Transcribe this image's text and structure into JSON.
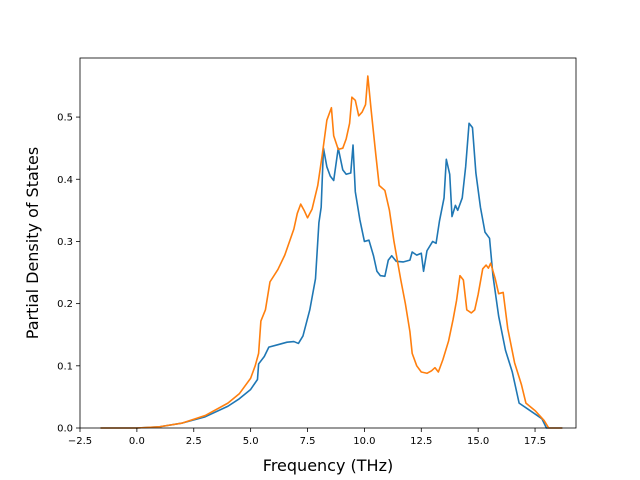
{
  "chart_data": {
    "type": "line",
    "title": "",
    "xlabel": "Frequency (THz)",
    "ylabel": "Partial Density of States",
    "xlim": [
      -2.5,
      19.3
    ],
    "ylim": [
      0.0,
      0.595
    ],
    "xticks": [
      -2.5,
      0.0,
      2.5,
      5.0,
      7.5,
      10.0,
      12.5,
      15.0,
      17.5
    ],
    "xtick_labels": [
      "−2.5",
      "0.0",
      "2.5",
      "5.0",
      "7.5",
      "10.0",
      "12.5",
      "15.0",
      "17.5"
    ],
    "yticks": [
      0.0,
      0.1,
      0.2,
      0.3,
      0.4,
      0.5
    ],
    "ytick_labels": [
      "0.0",
      "0.1",
      "0.2",
      "0.3",
      "0.4",
      "0.5"
    ],
    "grid": false,
    "series": [
      {
        "color": "#1f77b4",
        "points": [
          [
            -1.6,
            0.0
          ],
          [
            0.0,
            0.0
          ],
          [
            1.0,
            0.002
          ],
          [
            2.0,
            0.008
          ],
          [
            3.0,
            0.018
          ],
          [
            4.0,
            0.035
          ],
          [
            4.5,
            0.047
          ],
          [
            5.0,
            0.062
          ],
          [
            5.3,
            0.078
          ],
          [
            5.35,
            0.103
          ],
          [
            5.6,
            0.115
          ],
          [
            5.8,
            0.13
          ],
          [
            6.2,
            0.134
          ],
          [
            6.6,
            0.138
          ],
          [
            6.9,
            0.139
          ],
          [
            7.1,
            0.136
          ],
          [
            7.3,
            0.148
          ],
          [
            7.6,
            0.19
          ],
          [
            7.85,
            0.24
          ],
          [
            8.0,
            0.33
          ],
          [
            8.1,
            0.355
          ],
          [
            8.2,
            0.45
          ],
          [
            8.35,
            0.42
          ],
          [
            8.5,
            0.405
          ],
          [
            8.65,
            0.398
          ],
          [
            8.85,
            0.45
          ],
          [
            9.05,
            0.415
          ],
          [
            9.2,
            0.408
          ],
          [
            9.4,
            0.41
          ],
          [
            9.5,
            0.455
          ],
          [
            9.6,
            0.38
          ],
          [
            9.8,
            0.335
          ],
          [
            10.0,
            0.3
          ],
          [
            10.2,
            0.302
          ],
          [
            10.4,
            0.277
          ],
          [
            10.55,
            0.252
          ],
          [
            10.7,
            0.245
          ],
          [
            10.9,
            0.244
          ],
          [
            11.05,
            0.27
          ],
          [
            11.2,
            0.277
          ],
          [
            11.4,
            0.268
          ],
          [
            11.7,
            0.267
          ],
          [
            12.0,
            0.27
          ],
          [
            12.1,
            0.283
          ],
          [
            12.3,
            0.278
          ],
          [
            12.5,
            0.281
          ],
          [
            12.6,
            0.252
          ],
          [
            12.75,
            0.285
          ],
          [
            13.0,
            0.3
          ],
          [
            13.15,
            0.297
          ],
          [
            13.3,
            0.333
          ],
          [
            13.5,
            0.37
          ],
          [
            13.6,
            0.432
          ],
          [
            13.75,
            0.408
          ],
          [
            13.85,
            0.34
          ],
          [
            14.0,
            0.358
          ],
          [
            14.1,
            0.35
          ],
          [
            14.3,
            0.37
          ],
          [
            14.45,
            0.42
          ],
          [
            14.6,
            0.49
          ],
          [
            14.75,
            0.483
          ],
          [
            14.9,
            0.41
          ],
          [
            15.1,
            0.355
          ],
          [
            15.3,
            0.315
          ],
          [
            15.5,
            0.305
          ],
          [
            15.65,
            0.245
          ],
          [
            15.9,
            0.18
          ],
          [
            16.2,
            0.125
          ],
          [
            16.5,
            0.09
          ],
          [
            16.8,
            0.04
          ],
          [
            17.2,
            0.03
          ],
          [
            17.8,
            0.015
          ],
          [
            18.0,
            0.0
          ],
          [
            18.7,
            0.0
          ]
        ]
      },
      {
        "color": "#ff7f0e",
        "points": [
          [
            -1.6,
            0.0
          ],
          [
            0.0,
            0.0
          ],
          [
            1.0,
            0.002
          ],
          [
            2.0,
            0.008
          ],
          [
            3.0,
            0.02
          ],
          [
            4.0,
            0.04
          ],
          [
            4.5,
            0.055
          ],
          [
            5.0,
            0.08
          ],
          [
            5.2,
            0.1
          ],
          [
            5.35,
            0.12
          ],
          [
            5.45,
            0.172
          ],
          [
            5.65,
            0.19
          ],
          [
            5.85,
            0.235
          ],
          [
            6.2,
            0.255
          ],
          [
            6.5,
            0.278
          ],
          [
            6.9,
            0.32
          ],
          [
            7.05,
            0.345
          ],
          [
            7.2,
            0.36
          ],
          [
            7.35,
            0.35
          ],
          [
            7.5,
            0.338
          ],
          [
            7.7,
            0.352
          ],
          [
            7.95,
            0.39
          ],
          [
            8.15,
            0.44
          ],
          [
            8.35,
            0.495
          ],
          [
            8.55,
            0.515
          ],
          [
            8.65,
            0.47
          ],
          [
            8.85,
            0.448
          ],
          [
            9.05,
            0.45
          ],
          [
            9.2,
            0.465
          ],
          [
            9.35,
            0.49
          ],
          [
            9.45,
            0.532
          ],
          [
            9.6,
            0.527
          ],
          [
            9.75,
            0.502
          ],
          [
            9.9,
            0.508
          ],
          [
            10.05,
            0.52
          ],
          [
            10.15,
            0.566
          ],
          [
            10.3,
            0.51
          ],
          [
            10.5,
            0.44
          ],
          [
            10.65,
            0.39
          ],
          [
            10.9,
            0.382
          ],
          [
            11.1,
            0.35
          ],
          [
            11.3,
            0.3
          ],
          [
            11.6,
            0.238
          ],
          [
            11.8,
            0.2
          ],
          [
            12.0,
            0.155
          ],
          [
            12.1,
            0.12
          ],
          [
            12.3,
            0.1
          ],
          [
            12.5,
            0.09
          ],
          [
            12.75,
            0.088
          ],
          [
            12.95,
            0.092
          ],
          [
            13.1,
            0.097
          ],
          [
            13.25,
            0.09
          ],
          [
            13.45,
            0.11
          ],
          [
            13.7,
            0.14
          ],
          [
            13.9,
            0.175
          ],
          [
            14.05,
            0.205
          ],
          [
            14.2,
            0.245
          ],
          [
            14.35,
            0.238
          ],
          [
            14.5,
            0.19
          ],
          [
            14.7,
            0.185
          ],
          [
            14.85,
            0.19
          ],
          [
            15.0,
            0.215
          ],
          [
            15.2,
            0.256
          ],
          [
            15.35,
            0.262
          ],
          [
            15.45,
            0.257
          ],
          [
            15.55,
            0.265
          ],
          [
            15.75,
            0.24
          ],
          [
            15.9,
            0.216
          ],
          [
            16.1,
            0.218
          ],
          [
            16.3,
            0.16
          ],
          [
            16.6,
            0.105
          ],
          [
            16.9,
            0.07
          ],
          [
            17.1,
            0.04
          ],
          [
            17.5,
            0.028
          ],
          [
            17.9,
            0.012
          ],
          [
            18.1,
            0.0
          ],
          [
            18.7,
            0.0
          ]
        ]
      }
    ]
  }
}
